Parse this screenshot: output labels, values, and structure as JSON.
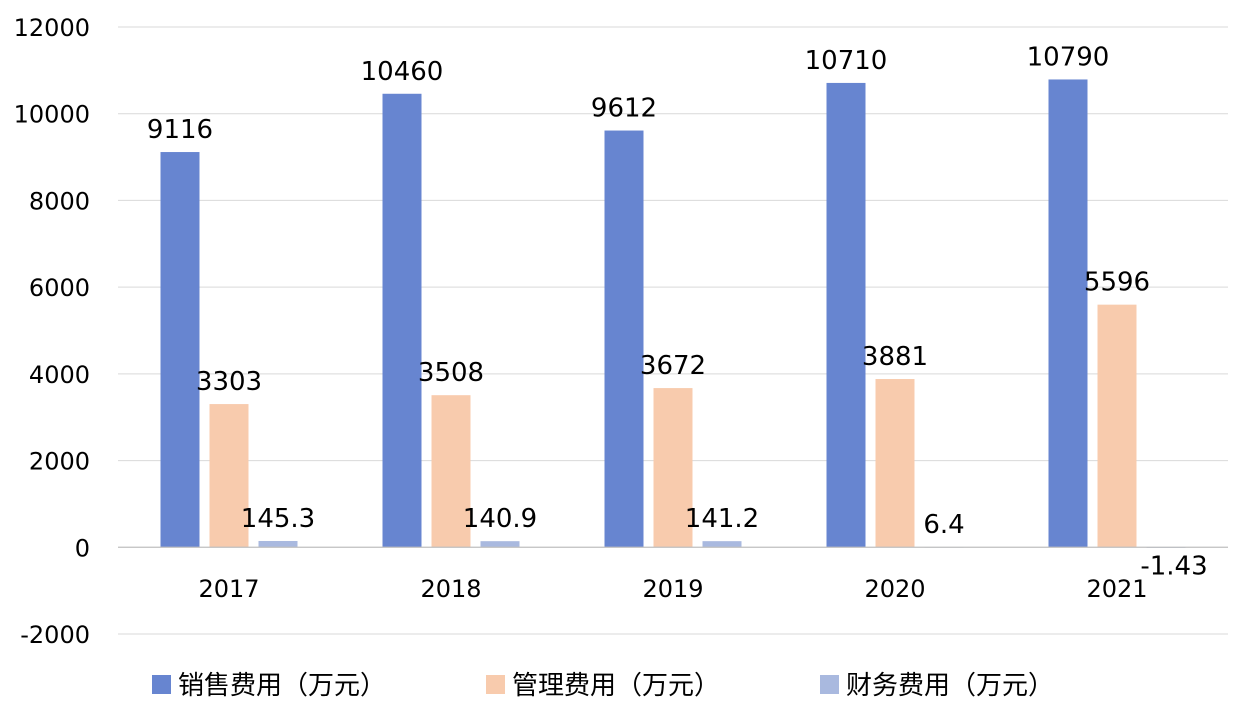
{
  "chart_data": {
    "type": "bar",
    "categories": [
      "2017",
      "2018",
      "2019",
      "2020",
      "2021"
    ],
    "series": [
      {
        "name": "销售费用（万元）",
        "values": [
          9116,
          10460,
          9612,
          10710,
          10790
        ],
        "labels": [
          "9116",
          "10460",
          "9612",
          "10710",
          "10790"
        ],
        "color": "#6785D0"
      },
      {
        "name": "管理费用（万元）",
        "values": [
          3303,
          3508,
          3672,
          3881,
          5596
        ],
        "labels": [
          "3303",
          "3508",
          "3672",
          "3881",
          "5596"
        ],
        "color": "#F8CBAD"
      },
      {
        "name": "财务费用（万元）",
        "values": [
          145.3,
          140.9,
          141.2,
          6.4,
          -1.43
        ],
        "labels": [
          "145.3",
          "140.9",
          "141.2",
          "6.4",
          "-1.43"
        ],
        "color": "#A9B9DF"
      }
    ],
    "ylim": [
      -2000,
      12000
    ],
    "yticks": [
      -2000,
      0,
      2000,
      4000,
      6000,
      8000,
      10000,
      12000
    ],
    "ytick_labels": [
      "-2000",
      "0",
      "2000",
      "4000",
      "6000",
      "8000",
      "10000",
      "12000"
    ],
    "grid": true,
    "legend_position": "bottom",
    "title": "",
    "xlabel": "",
    "ylabel": ""
  },
  "colors": {
    "grid": "#D9D9D9",
    "axis": "#BFBFBF"
  }
}
